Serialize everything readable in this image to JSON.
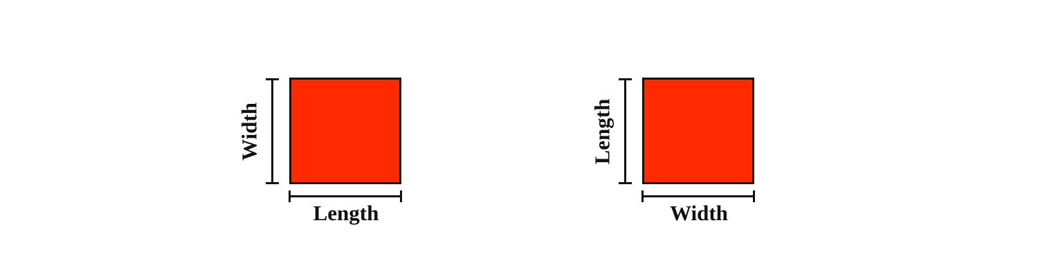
{
  "colors": {
    "square_fill": "#ff2a00",
    "stroke": "#111111"
  },
  "diagrams": [
    {
      "vertical_label": "Width",
      "horizontal_label": "Length"
    },
    {
      "vertical_label": "Length",
      "horizontal_label": "Width"
    }
  ]
}
